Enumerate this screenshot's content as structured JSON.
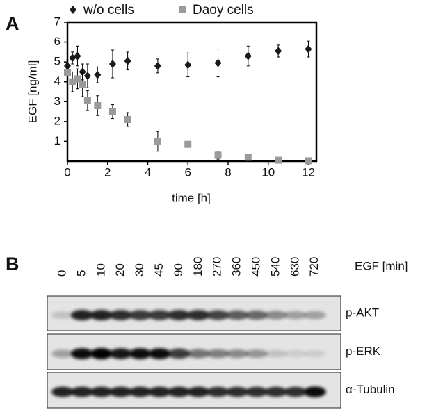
{
  "figure": {
    "panel_a": "A",
    "panel_b": "B"
  },
  "chart_data": {
    "type": "scatter",
    "xlabel": "time [h]",
    "ylabel": "EGF [ng/ml]",
    "x": [
      0,
      0.25,
      0.5,
      0.75,
      1,
      1.5,
      2.25,
      3,
      4.5,
      6,
      7.5,
      9,
      10.5,
      12
    ],
    "series": [
      {
        "name": "w/o cells",
        "color": "#1a1a1a",
        "marker": "diamond",
        "values": [
          4.8,
          5.2,
          5.3,
          4.5,
          4.3,
          4.35,
          4.9,
          5.05,
          4.8,
          4.85,
          4.95,
          5.3,
          5.55,
          5.65
        ],
        "errors": [
          0.3,
          0.3,
          0.5,
          0.4,
          0.6,
          0.4,
          0.7,
          0.45,
          0.35,
          0.6,
          0.7,
          0.5,
          0.3,
          0.4
        ]
      },
      {
        "name": "Daoy cells",
        "color": "#9a9a9a",
        "marker": "square",
        "values": [
          4.45,
          4.0,
          4.15,
          3.85,
          3.05,
          2.8,
          2.5,
          2.1,
          1.0,
          0.85,
          0.3,
          0.2,
          0.05,
          0.02
        ],
        "errors": [
          0.3,
          0.5,
          0.5,
          0.6,
          0.5,
          0.5,
          0.35,
          0.35,
          0.5,
          0.1,
          0.2,
          0.05,
          0.05,
          0.02
        ]
      }
    ],
    "xlim": [
      0,
      12.4
    ],
    "ylim": [
      0,
      7
    ],
    "xticks": [
      0,
      2,
      4,
      6,
      8,
      10,
      12
    ],
    "yticks": [
      1,
      2,
      3,
      4,
      5,
      6,
      7
    ]
  },
  "blot": {
    "treatment": "EGF [min]",
    "lanes": [
      "0",
      "5",
      "10",
      "20",
      "30",
      "45",
      "90",
      "180",
      "270",
      "360",
      "450",
      "540",
      "630",
      "720"
    ],
    "rows": [
      "p-AKT",
      "p-ERK",
      "α-Tubulin"
    ]
  }
}
